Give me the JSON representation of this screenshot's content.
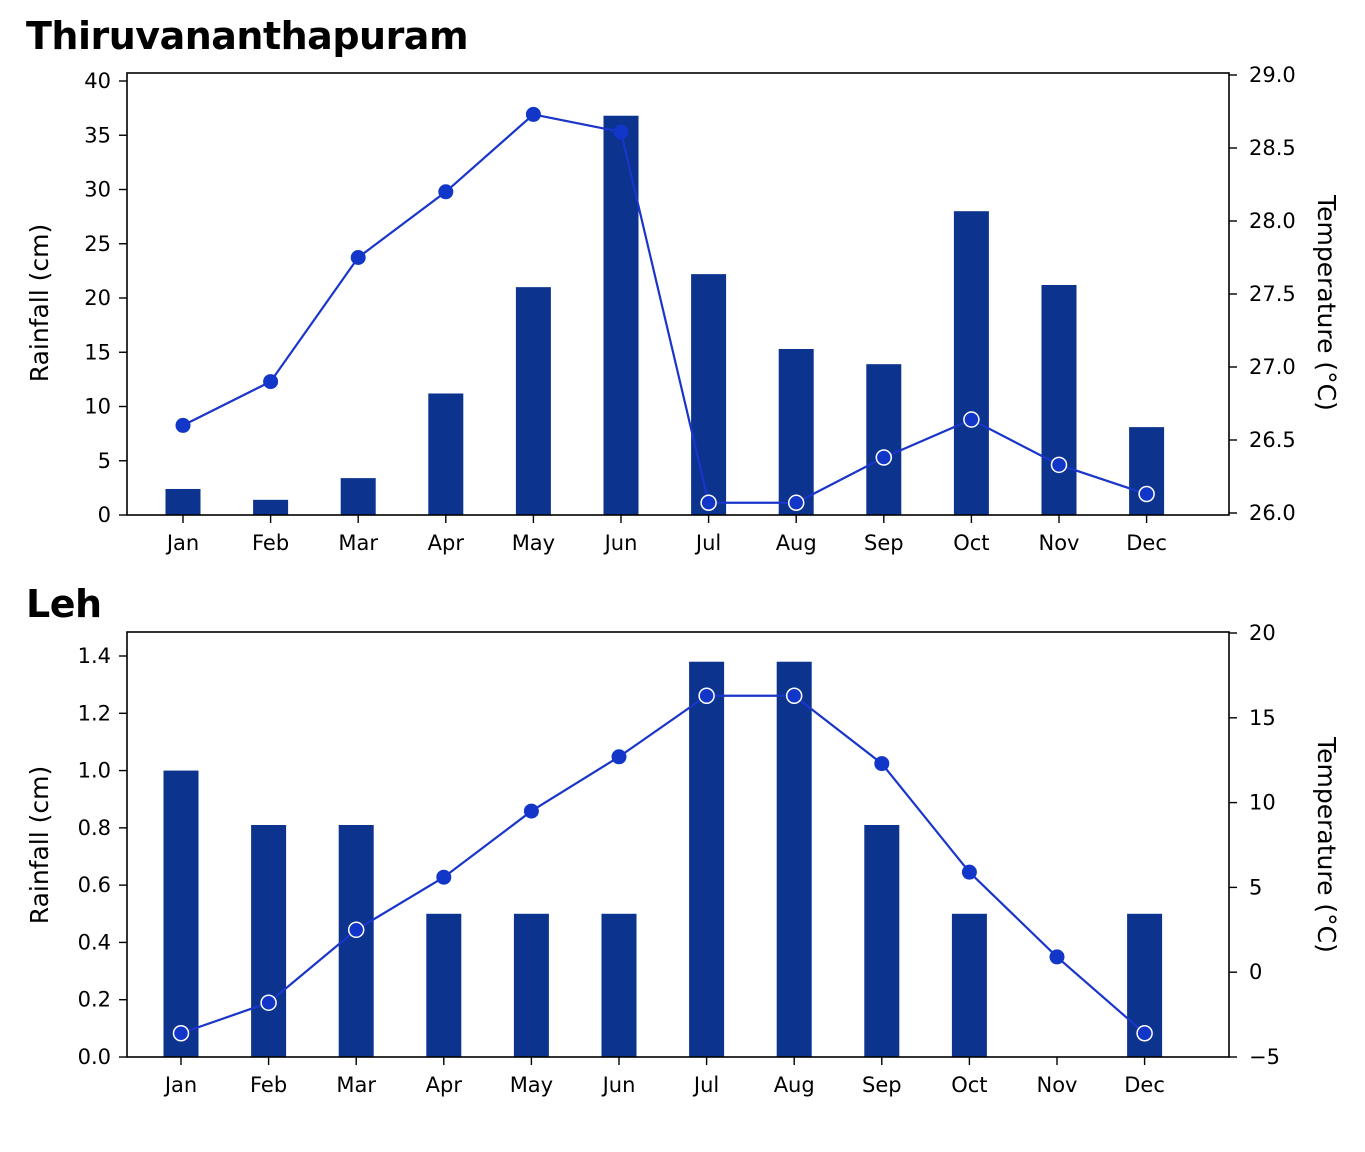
{
  "colors": {
    "bar": "#0c338e",
    "line": "#1a35c9",
    "marker": "#1237c8"
  },
  "chart_data": [
    {
      "type": "bar",
      "title": "Thiruvananthapuram",
      "categories": [
        "Jan",
        "Feb",
        "Mar",
        "Apr",
        "May",
        "Jun",
        "Jul",
        "Aug",
        "Sep",
        "Oct",
        "Nov",
        "Dec"
      ],
      "ylabel": "Rainfall (cm)",
      "ylabel_right": "Temperature (°C)",
      "ylim": [
        0,
        40
      ],
      "ylim_right": [
        26.0,
        29.0
      ],
      "yticks": [
        "0",
        "5",
        "10",
        "15",
        "20",
        "25",
        "30",
        "35",
        "40"
      ],
      "yticks_right": [
        "26.0",
        "26.5",
        "27.0",
        "27.5",
        "28.0",
        "28.5",
        "29.0"
      ],
      "series": [
        {
          "kind": "bar",
          "axis": "left",
          "values": [
            2.4,
            1.4,
            3.4,
            11.2,
            21.0,
            36.8,
            22.2,
            15.3,
            13.9,
            28.0,
            21.2,
            8.1
          ]
        },
        {
          "kind": "line",
          "axis": "right",
          "values": [
            26.6,
            26.9,
            27.75,
            28.2,
            28.73,
            28.61,
            26.07,
            26.07,
            26.38,
            26.64,
            26.33,
            26.13
          ]
        }
      ]
    },
    {
      "type": "bar",
      "title": "Leh",
      "categories": [
        "Jan",
        "Feb",
        "Mar",
        "Apr",
        "May",
        "Jun",
        "Jul",
        "Aug",
        "Sep",
        "Oct",
        "Nov",
        "Dec"
      ],
      "ylabel": "Rainfall (cm)",
      "ylabel_right": "Temperature (°C)",
      "ylim": [
        0,
        1.5
      ],
      "ylim_right": [
        -5,
        20
      ],
      "yticks": [
        "0.0",
        "0.2",
        "0.4",
        "0.6",
        "0.8",
        "1.0",
        "1.2",
        "1.4"
      ],
      "yticks_right": [
        "−5",
        "0",
        "5",
        "10",
        "15",
        "20"
      ],
      "series": [
        {
          "kind": "bar",
          "axis": "left",
          "values": [
            1.0,
            0.81,
            0.81,
            0.5,
            0.5,
            0.5,
            1.38,
            1.38,
            0.81,
            0.5,
            0.0,
            0.5
          ]
        },
        {
          "kind": "line",
          "axis": "right",
          "values": [
            -3.6,
            -1.8,
            2.5,
            5.6,
            9.5,
            12.7,
            16.3,
            16.3,
            12.3,
            5.9,
            0.9,
            -3.6
          ]
        }
      ]
    }
  ]
}
